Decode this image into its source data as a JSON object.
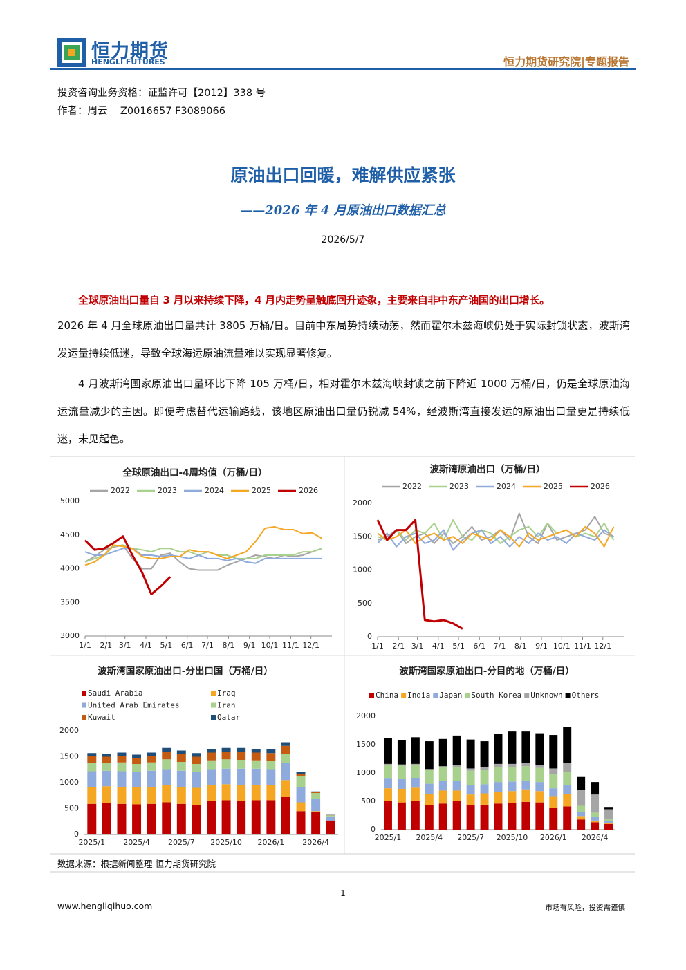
{
  "header": {
    "logo_cn": "恒力期货",
    "logo_en": "HENGLI FUTURES",
    "right": "恒力期货研究院|专题报告"
  },
  "meta": {
    "qualification": "投资咨询业务资格：证监许可【2012】338 号",
    "author": "作者：周云    Z0016657 F3089066"
  },
  "title": "原油出口回暖，难解供应紧张",
  "subtitle": "——2026 年 4 月原油出口数据汇总",
  "date": "2026/5/7",
  "highlight": "全球原油出口量自 3 月以来持续下降，4 月内走势呈触底回升迹象，主要来自非中东产油国的出口增长。",
  "paragraphs": [
    "2026 年 4 月全球原油出口量共计 3805 万桶/日。目前中东局势持续动荡，然而霍尔木兹海峡仍处于实际封锁状态，波斯湾发运量持续低迷，导致全球海运原油流量难以实现显著修复。",
    "4 月波斯湾国家原油出口量环比下降 105 万桶/日，相对霍尔木兹海峡封锁之前下降近 1000 万桶/日，仍是全球原油海运流量减少的主因。即便考虑替代运输路线，该地区原油出口量仍锐减 54%，经波斯湾直接发运的原油出口量更是持续低迷，未见起色。"
  ],
  "chart_data": [
    {
      "type": "line",
      "title": "全球原油出口-4周均值（万桶/日）",
      "x": [
        0,
        14,
        28,
        42,
        56,
        70,
        84,
        98,
        112,
        126,
        140,
        154,
        168,
        182,
        196,
        210,
        224,
        238,
        252,
        266,
        280,
        294,
        308,
        322,
        336,
        350
      ],
      "xlim": [
        0,
        365
      ],
      "xticks": [
        {
          "value": 0,
          "label": "1/1"
        },
        {
          "value": 31,
          "label": "2/1"
        },
        {
          "value": 59,
          "label": "3/1"
        },
        {
          "value": 90,
          "label": "4/1"
        },
        {
          "value": 120,
          "label": "5/1"
        },
        {
          "value": 151,
          "label": "6/1"
        },
        {
          "value": 181,
          "label": "7/1"
        },
        {
          "value": 212,
          "label": "8/1"
        },
        {
          "value": 243,
          "label": "9/1"
        },
        {
          "value": 273,
          "label": "10/1"
        },
        {
          "value": 304,
          "label": "11/1"
        },
        {
          "value": 334,
          "label": "12/1"
        }
      ],
      "ylim": [
        3000,
        5000
      ],
      "yticks": [
        3000,
        3500,
        4000,
        4500,
        5000
      ],
      "series": [
        {
          "name": "2022",
          "color": "#a5a5a5",
          "values": [
            4100,
            4180,
            4280,
            4320,
            4350,
            4150,
            4000,
            4000,
            4200,
            4230,
            4100,
            4000,
            3980,
            3980,
            3980,
            4050,
            4100,
            4150,
            4200,
            4180,
            4150,
            4200,
            4180,
            4200,
            4250,
            4300
          ]
        },
        {
          "name": "2023",
          "color": "#a9d18e",
          "values": [
            4100,
            4150,
            4200,
            4330,
            4350,
            4300,
            4280,
            4250,
            4300,
            4300,
            4250,
            4250,
            4200,
            4250,
            4200,
            4200,
            4150,
            4150,
            4150,
            4200,
            4200,
            4200,
            4200,
            4250,
            4250,
            4300
          ]
        },
        {
          "name": "2024",
          "color": "#8faadc",
          "values": [
            4250,
            4200,
            4200,
            4250,
            4300,
            4300,
            4200,
            4200,
            4180,
            4200,
            4180,
            4150,
            4200,
            4150,
            4150,
            4120,
            4150,
            4100,
            4080,
            4150,
            4150,
            4150,
            4150,
            4150,
            4150,
            4150
          ]
        },
        {
          "name": "2025",
          "color": "#f5a623",
          "values": [
            4050,
            4100,
            4200,
            4350,
            4330,
            4300,
            4180,
            4150,
            4150,
            4180,
            4180,
            4280,
            4250,
            4250,
            4200,
            4150,
            4200,
            4250,
            4400,
            4600,
            4620,
            4580,
            4580,
            4520,
            4530,
            4450
          ]
        },
        {
          "name": "2026",
          "color": "#c00000",
          "values": [
            4420,
            4280,
            4300,
            4380,
            4480,
            4200,
            3950,
            3620,
            3740,
            3880,
            null,
            null,
            null,
            null,
            null,
            null,
            null,
            null,
            null,
            null,
            null,
            null,
            null,
            null,
            null,
            null
          ]
        }
      ]
    },
    {
      "type": "line",
      "title": "波斯湾原油出口（万桶/日）",
      "x": [
        0,
        14,
        28,
        42,
        56,
        70,
        84,
        98,
        112,
        126,
        140,
        154,
        168,
        182,
        196,
        210,
        224,
        238,
        252,
        266,
        280,
        294,
        308,
        322,
        336,
        350
      ],
      "xlim": [
        0,
        365
      ],
      "xticks": [
        {
          "value": 0,
          "label": "1/1"
        },
        {
          "value": 31,
          "label": "2/1"
        },
        {
          "value": 59,
          "label": "3/1"
        },
        {
          "value": 90,
          "label": "4/1"
        },
        {
          "value": 120,
          "label": "5/1"
        },
        {
          "value": 151,
          "label": "6/1"
        },
        {
          "value": 181,
          "label": "7/1"
        },
        {
          "value": 212,
          "label": "8/1"
        },
        {
          "value": 243,
          "label": "9/1"
        },
        {
          "value": 273,
          "label": "10/1"
        },
        {
          "value": 304,
          "label": "11/1"
        },
        {
          "value": 334,
          "label": "12/1"
        }
      ],
      "ylim": [
        0,
        2000
      ],
      "yticks": [
        0,
        500,
        1000,
        1500,
        2000
      ],
      "series": [
        {
          "name": "2022",
          "color": "#a5a5a5",
          "values": [
            1450,
            1500,
            1600,
            1400,
            1500,
            1550,
            1400,
            1550,
            1400,
            1500,
            1650,
            1450,
            1500,
            1600,
            1450,
            1850,
            1500,
            1400,
            1700,
            1450,
            1500,
            1550,
            1600,
            1800,
            1550,
            1500
          ]
        },
        {
          "name": "2023",
          "color": "#a9d18e",
          "values": [
            1500,
            1450,
            1600,
            1450,
            1600,
            1550,
            1700,
            1450,
            1750,
            1500,
            1450,
            1600,
            1550,
            1400,
            1500,
            1600,
            1650,
            1500,
            1700,
            1550,
            1600,
            1500,
            1550,
            1500,
            1700,
            1450
          ]
        },
        {
          "name": "2024",
          "color": "#8faadc",
          "values": [
            1400,
            1550,
            1350,
            1500,
            1550,
            1400,
            1450,
            1600,
            1300,
            1450,
            1550,
            1600,
            1400,
            1500,
            1350,
            1500,
            1400,
            1550,
            1450,
            1500,
            1400,
            1550,
            1500,
            1450,
            1600,
            1500
          ]
        },
        {
          "name": "2025",
          "color": "#f5a623",
          "values": [
            1550,
            1450,
            1500,
            1600,
            1400,
            1500,
            1550,
            1450,
            1500,
            1400,
            1550,
            1500,
            1450,
            1600,
            1500,
            1350,
            1550,
            1450,
            1500,
            1550,
            1600,
            1500,
            1650,
            1550,
            1350,
            1650
          ]
        },
        {
          "name": "2026",
          "color": "#c00000",
          "values": [
            1750,
            1450,
            1600,
            1600,
            1750,
            250,
            230,
            250,
            200,
            120,
            null,
            null,
            null,
            null,
            null,
            null,
            null,
            null,
            null,
            null,
            null,
            null,
            null,
            null,
            null,
            null
          ]
        }
      ]
    },
    {
      "type": "bar",
      "stacked": true,
      "title": "波斯湾国家原油出口-分出口国（万桶/日）",
      "categories": [
        "2025/1",
        null,
        null,
        "2025/4",
        null,
        null,
        "2025/7",
        null,
        null,
        "2025/10",
        null,
        null,
        "2026/1",
        null,
        null,
        "2026/4",
        null
      ],
      "ylim": [
        0,
        2000
      ],
      "yticks": [
        0,
        500,
        1000,
        1500,
        2000
      ],
      "series": [
        {
          "name": "Saudi Arabia",
          "color": "#c00000",
          "values": [
            590,
            610,
            590,
            580,
            590,
            620,
            590,
            570,
            640,
            660,
            650,
            660,
            660,
            720,
            450,
            430,
            270
          ]
        },
        {
          "name": "Iraq",
          "color": "#f5a623",
          "values": [
            330,
            320,
            330,
            330,
            330,
            330,
            320,
            330,
            310,
            310,
            310,
            300,
            300,
            330,
            170,
            20,
            0
          ]
        },
        {
          "name": "United Arab Emirates",
          "color": "#8faadc",
          "values": [
            300,
            300,
            300,
            300,
            310,
            310,
            320,
            300,
            310,
            300,
            310,
            310,
            300,
            330,
            300,
            230,
            80
          ]
        },
        {
          "name": "Iran",
          "color": "#a9d18e",
          "values": [
            160,
            150,
            170,
            150,
            160,
            190,
            170,
            160,
            170,
            180,
            170,
            160,
            160,
            170,
            200,
            120,
            20
          ]
        },
        {
          "name": "Kuwait",
          "color": "#c55a11",
          "values": [
            130,
            120,
            130,
            120,
            130,
            150,
            150,
            140,
            150,
            150,
            160,
            150,
            150,
            160,
            50,
            20,
            5
          ]
        },
        {
          "name": "Qatar",
          "color": "#1f4e79",
          "values": [
            60,
            60,
            60,
            60,
            60,
            70,
            70,
            70,
            70,
            70,
            70,
            70,
            70,
            70,
            30,
            10,
            5
          ]
        }
      ]
    },
    {
      "type": "bar",
      "stacked": true,
      "title": "波斯湾国家原油出口-分目的地（万桶/日）",
      "categories": [
        "2025/1",
        null,
        null,
        "2025/4",
        null,
        null,
        "2025/7",
        null,
        null,
        "2025/10",
        null,
        null,
        "2026/1",
        null,
        null,
        "2026/4",
        null
      ],
      "ylim": [
        0,
        2000
      ],
      "yticks": [
        0,
        500,
        1000,
        1500,
        2000
      ],
      "series": [
        {
          "name": "China",
          "color": "#c00000",
          "values": [
            500,
            480,
            510,
            430,
            460,
            500,
            430,
            440,
            460,
            470,
            490,
            480,
            380,
            410,
            180,
            130,
            100
          ]
        },
        {
          "name": "India",
          "color": "#f5a623",
          "values": [
            230,
            240,
            230,
            200,
            230,
            190,
            190,
            200,
            210,
            210,
            220,
            200,
            200,
            220,
            60,
            30,
            20
          ]
        },
        {
          "name": "Japan",
          "color": "#8faadc",
          "values": [
            170,
            170,
            170,
            180,
            170,
            170,
            170,
            160,
            170,
            170,
            150,
            160,
            150,
            150,
            70,
            60,
            30
          ]
        },
        {
          "name": "South Korea",
          "color": "#a9d18e",
          "values": [
            240,
            240,
            230,
            240,
            240,
            250,
            250,
            250,
            260,
            260,
            260,
            250,
            250,
            240,
            110,
            80,
            40
          ]
        },
        {
          "name": "Unknown",
          "color": "#a5a5a5",
          "values": [
            20,
            20,
            20,
            20,
            20,
            30,
            40,
            60,
            60,
            50,
            60,
            50,
            100,
            160,
            280,
            320,
            170
          ]
        },
        {
          "name": "Others",
          "color": "#000000",
          "values": [
            460,
            430,
            470,
            490,
            480,
            520,
            510,
            450,
            530,
            570,
            550,
            560,
            590,
            630,
            230,
            220,
            40
          ]
        }
      ]
    }
  ],
  "source": "数据来源：根据新闻整理 恒力期货研究院",
  "footer": {
    "page": "1",
    "url": "www.hengliqihuo.com",
    "disclaimer": "市场有风险，投资需谨慎"
  }
}
